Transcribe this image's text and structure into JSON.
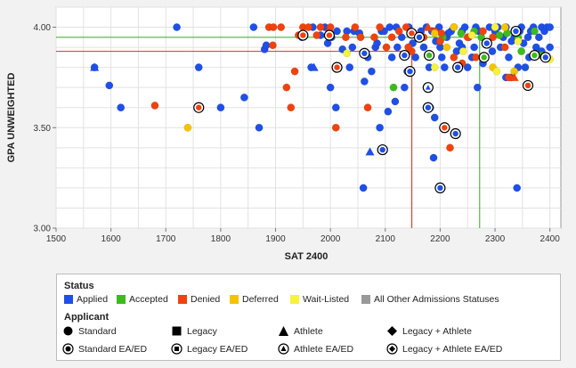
{
  "chart_data": {
    "type": "scatter",
    "xlabel": "SAT 2400",
    "ylabel": "GPA UNWEIGHTED",
    "xlim": [
      1500,
      2420
    ],
    "ylim": [
      3.0,
      4.1
    ],
    "x_ticks": [
      "1500",
      "1600",
      "1700",
      "1800",
      "1900",
      "2000",
      "2100",
      "2200",
      "2300",
      "2400"
    ],
    "x_tick_values": [
      1500,
      1600,
      1700,
      1800,
      1900,
      2000,
      2100,
      2200,
      2300,
      2400
    ],
    "y_ticks": [
      "3.00",
      "3.50",
      "4.00"
    ],
    "y_tick_values": [
      3.0,
      3.5,
      4.0
    ],
    "grid": true,
    "reference_lines": [
      {
        "color": "#dd3311",
        "x": 2148,
        "y": 3.88
      },
      {
        "color": "#33aa22",
        "x": 2272,
        "y": 3.95
      }
    ],
    "colors": {
      "applied": "#1e4fe8",
      "accepted": "#3dbb1c",
      "denied": "#f0420e",
      "deferred": "#f5c400",
      "waitlisted": "#f7f23a",
      "other": "#999999"
    },
    "series": [
      {
        "name": "Applied",
        "color": "#1e4fe8",
        "points": [
          [
            1570,
            3.8
          ],
          [
            1597,
            3.71
          ],
          [
            1618,
            3.6
          ],
          [
            1720,
            4.0
          ],
          [
            1760,
            3.8
          ],
          [
            1800,
            3.6
          ],
          [
            1843,
            3.65
          ],
          [
            1860,
            4.0
          ],
          [
            1870,
            3.5
          ],
          [
            1880,
            3.89
          ],
          [
            1883,
            3.91
          ],
          [
            1965,
            3.8
          ],
          [
            1968,
            4.0
          ],
          [
            1990,
            4.0
          ],
          [
            2000,
            3.7
          ],
          [
            2002,
            3.95
          ],
          [
            2010,
            3.6
          ],
          [
            2012,
            3.98
          ],
          [
            2030,
            3.98
          ],
          [
            2035,
            3.8
          ],
          [
            2040,
            3.9
          ],
          [
            2043,
            3.98
          ],
          [
            2060,
            3.2
          ],
          [
            2062,
            3.73
          ],
          [
            2068,
            3.85
          ],
          [
            2075,
            3.78
          ],
          [
            2082,
            3.9
          ],
          [
            2090,
            3.5
          ],
          [
            2093,
            3.98
          ],
          [
            2105,
            3.58
          ],
          [
            2108,
            4.0
          ],
          [
            2112,
            3.85
          ],
          [
            2118,
            3.63
          ],
          [
            2120,
            4.0
          ],
          [
            2122,
            3.9
          ],
          [
            2130,
            3.95
          ],
          [
            2140,
            3.78
          ],
          [
            2143,
            4.0
          ],
          [
            2150,
            3.92
          ],
          [
            2155,
            3.85
          ],
          [
            2160,
            3.95
          ],
          [
            2165,
            3.98
          ],
          [
            2170,
            3.9
          ],
          [
            2175,
            4.0
          ],
          [
            2180,
            3.8
          ],
          [
            2182,
            3.6
          ],
          [
            2188,
            3.35
          ],
          [
            2190,
            3.55
          ],
          [
            2192,
            3.93
          ],
          [
            2198,
            4.0
          ],
          [
            2200,
            3.9
          ],
          [
            2203,
            3.85
          ],
          [
            2208,
            3.8
          ],
          [
            2212,
            3.95
          ],
          [
            2220,
            3.98
          ],
          [
            2225,
            4.0
          ],
          [
            2230,
            3.88
          ],
          [
            2235,
            3.92
          ],
          [
            2240,
            3.98
          ],
          [
            2245,
            4.0
          ],
          [
            2252,
            3.95
          ],
          [
            2258,
            3.85
          ],
          [
            2262,
            3.9
          ],
          [
            2265,
            4.0
          ],
          [
            2270,
            3.98
          ],
          [
            2278,
            3.82
          ],
          [
            2285,
            3.92
          ],
          [
            2290,
            4.0
          ],
          [
            2295,
            3.88
          ],
          [
            2300,
            3.98
          ],
          [
            2305,
            4.0
          ],
          [
            2310,
            3.9
          ],
          [
            2315,
            3.95
          ],
          [
            2320,
            4.0
          ],
          [
            2325,
            3.85
          ],
          [
            2330,
            3.75
          ],
          [
            2335,
            3.95
          ],
          [
            2340,
            3.2
          ],
          [
            2342,
            3.8
          ],
          [
            2345,
            3.98
          ],
          [
            2348,
            4.0
          ],
          [
            2352,
            3.92
          ],
          [
            2355,
            3.8
          ],
          [
            2360,
            3.95
          ],
          [
            2365,
            3.98
          ],
          [
            2370,
            4.0
          ],
          [
            2375,
            3.9
          ],
          [
            2380,
            3.95
          ],
          [
            2385,
            4.0
          ],
          [
            2390,
            3.98
          ],
          [
            2395,
            4.0
          ],
          [
            2400,
            3.9
          ],
          [
            2400,
            4.0
          ],
          [
            2250,
            3.8
          ],
          [
            2215,
            3.97
          ],
          [
            2185,
            3.98
          ],
          [
            2135,
            3.7
          ],
          [
            2098,
            3.98
          ],
          [
            2085,
            3.92
          ],
          [
            2053,
            3.97
          ],
          [
            2022,
            3.89
          ],
          [
            1995,
            3.92
          ],
          [
            1982,
            3.96
          ],
          [
            1948,
            3.95
          ],
          [
            2268,
            3.7
          ],
          [
            2320,
            3.75
          ],
          [
            2330,
            3.93
          ],
          [
            2362,
            3.85
          ],
          [
            2385,
            3.88
          ],
          [
            2240,
            3.9
          ],
          [
            2206,
            3.96
          ]
        ]
      },
      {
        "name": "Accepted",
        "color": "#3dbb1c",
        "points": [
          [
            2115,
            3.7
          ],
          [
            2178,
            3.86
          ],
          [
            2205,
            3.95
          ],
          [
            2238,
            3.97
          ],
          [
            2262,
            3.98
          ],
          [
            2275,
            3.95
          ],
          [
            2308,
            3.96
          ],
          [
            2322,
            3.97
          ],
          [
            2342,
            3.95
          ],
          [
            2372,
            3.98
          ],
          [
            2385,
            3.86
          ],
          [
            2348,
            3.88
          ]
        ]
      },
      {
        "name": "Denied",
        "color": "#f0420e",
        "points": [
          [
            1680,
            3.61
          ],
          [
            1760,
            3.6
          ],
          [
            1888,
            4.0
          ],
          [
            1896,
            4.0
          ],
          [
            1895,
            3.91
          ],
          [
            1910,
            4.0
          ],
          [
            1920,
            3.7
          ],
          [
            1928,
            3.6
          ],
          [
            1935,
            3.78
          ],
          [
            1942,
            3.96
          ],
          [
            1950,
            4.0
          ],
          [
            1960,
            4.0
          ],
          [
            1975,
            3.96
          ],
          [
            1982,
            4.0
          ],
          [
            1998,
            3.98
          ],
          [
            2000,
            4.0
          ],
          [
            2010,
            3.5
          ],
          [
            2015,
            3.8
          ],
          [
            2028,
            3.95
          ],
          [
            2045,
            4.0
          ],
          [
            2055,
            3.95
          ],
          [
            2068,
            3.6
          ],
          [
            2080,
            3.95
          ],
          [
            2090,
            4.0
          ],
          [
            2102,
            3.9
          ],
          [
            2112,
            3.95
          ],
          [
            2125,
            3.98
          ],
          [
            2138,
            4.0
          ],
          [
            2148,
            3.88
          ],
          [
            2162,
            3.96
          ],
          [
            2170,
            3.95
          ],
          [
            2190,
            3.98
          ],
          [
            2202,
            3.97
          ],
          [
            2210,
            3.5
          ],
          [
            2218,
            3.4
          ],
          [
            2225,
            3.85
          ],
          [
            2240,
            3.82
          ],
          [
            2250,
            3.95
          ],
          [
            2265,
            3.85
          ],
          [
            2278,
            3.98
          ],
          [
            2296,
            3.95
          ],
          [
            2318,
            3.9
          ],
          [
            2325,
            3.75
          ],
          [
            2358,
            3.71
          ],
          [
            2200,
            3.93
          ],
          [
            2142,
            3.9
          ]
        ]
      },
      {
        "name": "Deferred",
        "color": "#f5c400",
        "points": [
          [
            1740,
            3.5
          ],
          [
            2190,
            3.97
          ],
          [
            2212,
            3.9
          ],
          [
            2225,
            4.0
          ],
          [
            2296,
            3.8
          ],
          [
            2335,
            3.78
          ],
          [
            2318,
            4.0
          ]
        ]
      },
      {
        "name": "Wait-Listed",
        "color": "#f7f23a",
        "points": [
          [
            2030,
            3.87
          ],
          [
            2190,
            3.8
          ],
          [
            2242,
            3.88
          ],
          [
            2258,
            3.96
          ],
          [
            2300,
            4.0
          ],
          [
            2303,
            3.78
          ],
          [
            2342,
            3.93
          ],
          [
            2400,
            3.84
          ]
        ]
      },
      {
        "name": "Legacy + EA/ED and Athlete markers",
        "color": "#ffffff",
        "points": []
      }
    ],
    "special_points": [
      {
        "status": "applied",
        "marker": "athlete",
        "x": 1570,
        "y": 3.8
      },
      {
        "status": "applied",
        "marker": "athlete",
        "x": 1970,
        "y": 3.8
      },
      {
        "status": "applied",
        "marker": "athlete",
        "x": 2072,
        "y": 3.38
      },
      {
        "status": "denied",
        "marker": "athlete",
        "x": 2178,
        "y": 4.0
      },
      {
        "status": "denied",
        "marker": "athlete",
        "x": 2335,
        "y": 3.75
      },
      {
        "status": "denied",
        "marker": "standard-ea",
        "x": 1760,
        "y": 3.6
      },
      {
        "status": "denied",
        "marker": "standard-ea",
        "x": 1950,
        "y": 3.96
      },
      {
        "status": "denied",
        "marker": "standard-ea",
        "x": 2012,
        "y": 3.8
      },
      {
        "status": "denied",
        "marker": "standard-ea",
        "x": 2148,
        "y": 3.97
      },
      {
        "status": "denied",
        "marker": "standard-ea",
        "x": 2208,
        "y": 3.5
      },
      {
        "status": "denied",
        "marker": "standard-ea",
        "x": 2360,
        "y": 3.71
      },
      {
        "status": "applied",
        "marker": "standard-ea",
        "x": 2062,
        "y": 3.87
      },
      {
        "status": "applied",
        "marker": "standard-ea",
        "x": 2095,
        "y": 3.39
      },
      {
        "status": "applied",
        "marker": "standard-ea",
        "x": 2135,
        "y": 3.86
      },
      {
        "status": "applied",
        "marker": "standard-ea",
        "x": 2145,
        "y": 3.78
      },
      {
        "status": "applied",
        "marker": "standard-ea",
        "x": 2178,
        "y": 3.6
      },
      {
        "status": "applied",
        "marker": "standard-ea",
        "x": 2200,
        "y": 3.2
      },
      {
        "status": "applied",
        "marker": "standard-ea",
        "x": 2228,
        "y": 3.47
      },
      {
        "status": "applied",
        "marker": "standard-ea",
        "x": 2232,
        "y": 3.8
      },
      {
        "status": "applied",
        "marker": "standard-ea",
        "x": 2285,
        "y": 3.92
      },
      {
        "status": "applied",
        "marker": "standard-ea",
        "x": 2338,
        "y": 3.98
      },
      {
        "status": "applied",
        "marker": "standard-ea",
        "x": 2392,
        "y": 3.85
      },
      {
        "status": "accepted",
        "marker": "standard-ea",
        "x": 2180,
        "y": 3.86
      },
      {
        "status": "accepted",
        "marker": "standard-ea",
        "x": 2280,
        "y": 3.85
      },
      {
        "status": "accepted",
        "marker": "standard-ea",
        "x": 2372,
        "y": 3.86
      },
      {
        "status": "applied",
        "marker": "athlete-ea",
        "x": 2178,
        "y": 3.7
      },
      {
        "status": "denied",
        "marker": "standard-ea",
        "x": 1998,
        "y": 3.96
      },
      {
        "status": "applied",
        "marker": "standard-ea",
        "x": 2162,
        "y": 3.95
      }
    ]
  },
  "legend": {
    "status_title": "Status",
    "status_items": [
      {
        "label": "Applied",
        "color": "#1e4fe8"
      },
      {
        "label": "Accepted",
        "color": "#3dbb1c"
      },
      {
        "label": "Denied",
        "color": "#f0420e"
      },
      {
        "label": "Deferred",
        "color": "#f5c400"
      },
      {
        "label": "Wait-Listed",
        "color": "#f7f23a"
      },
      {
        "label": "All Other Admissions Statuses",
        "color": "#999999"
      }
    ],
    "applicant_title": "Applicant",
    "applicant_items": [
      {
        "label": "Standard",
        "icon": "circle-icon"
      },
      {
        "label": "Legacy",
        "icon": "square-icon"
      },
      {
        "label": "Athlete",
        "icon": "triangle-icon"
      },
      {
        "label": "Legacy + Athlete",
        "icon": "diamond-icon"
      },
      {
        "label": "Standard EA/ED",
        "icon": "ringed-circle-icon"
      },
      {
        "label": "Legacy EA/ED",
        "icon": "ringed-square-icon"
      },
      {
        "label": "Athlete EA/ED",
        "icon": "ringed-triangle-icon"
      },
      {
        "label": "Legacy + Athlete EA/ED",
        "icon": "ringed-diamond-icon"
      }
    ]
  }
}
